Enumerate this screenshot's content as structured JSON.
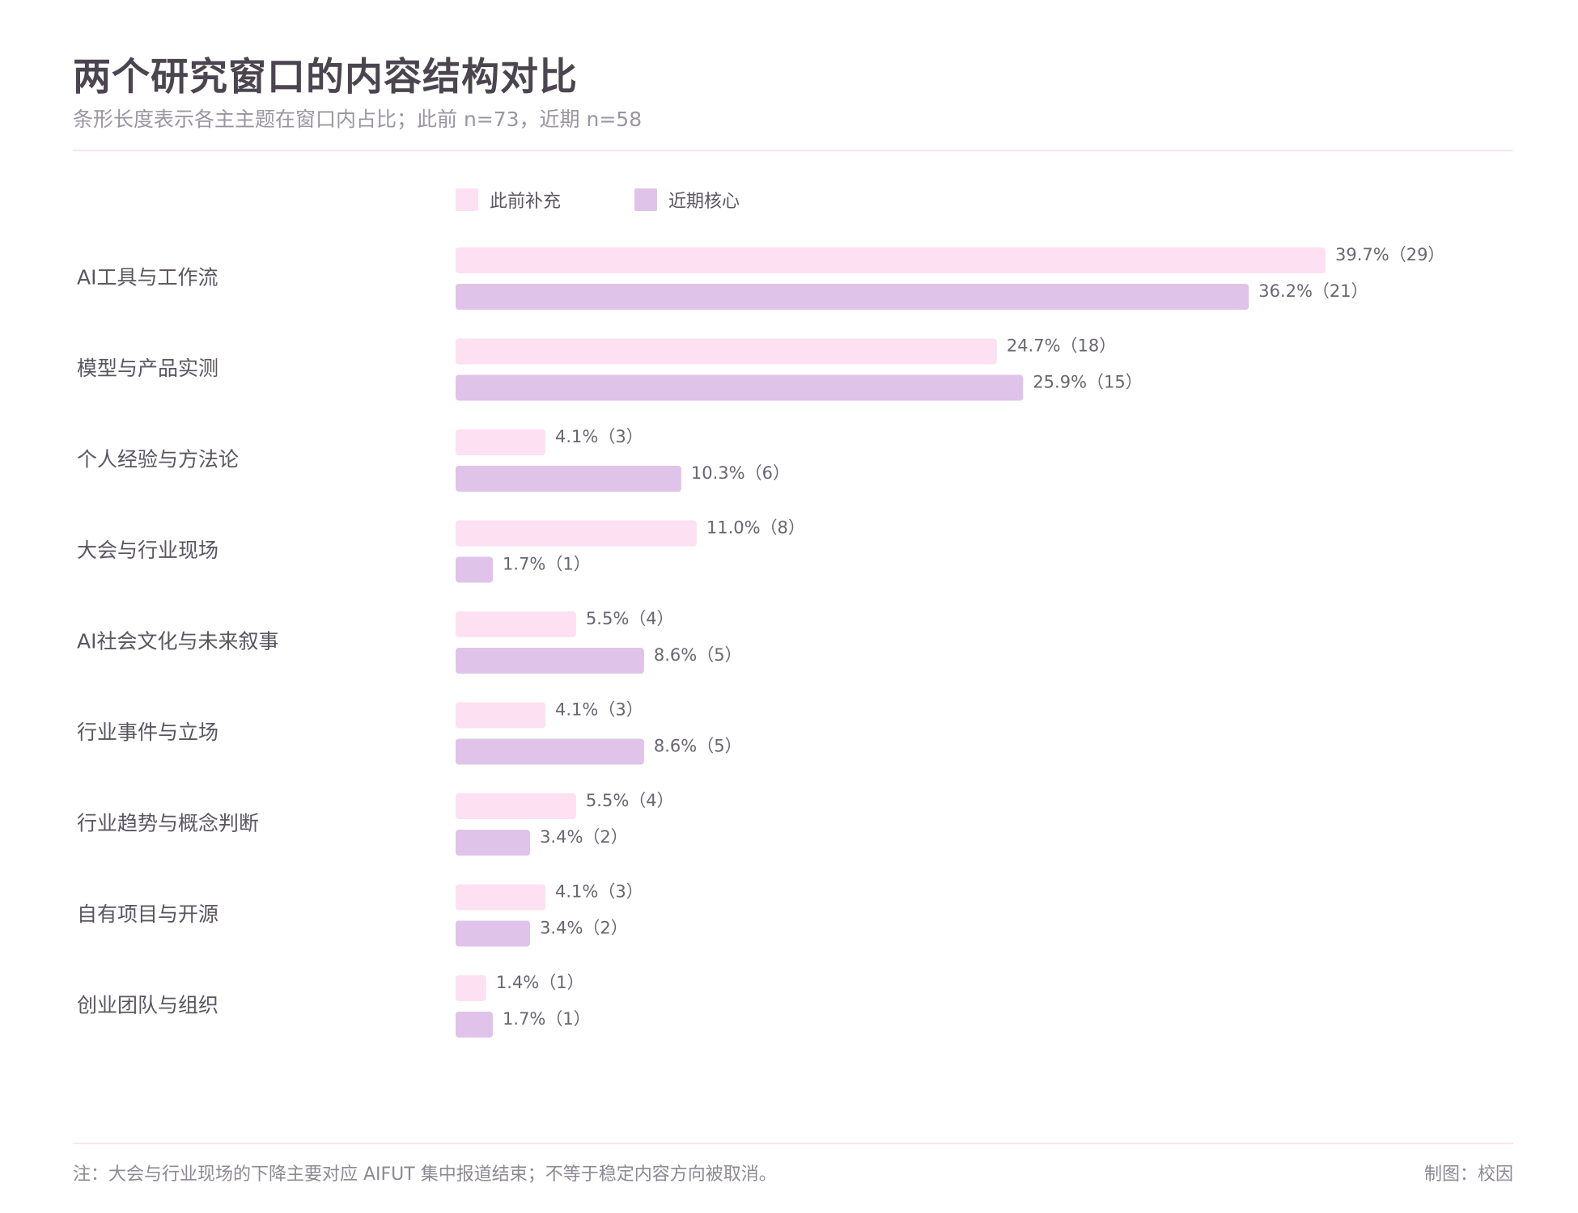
{
  "title": "两个研究窗口的内容结构对比",
  "subtitle": "条形长度表示各主主题在窗口内占比；此前 n=73，近期 n=58",
  "footer": {
    "note": "注：大会与行业现场的下降主要对应 AIFUT 集中报道结束；不等于稳定内容方向被取消。",
    "credit": "制图：校因"
  },
  "colors": {
    "previous": "#fde0f1",
    "recent": "#e0c3e8",
    "label": "#5a5560",
    "value_label": "#6a6570",
    "rule": "#fbe3ef"
  },
  "chart_data": {
    "type": "bar",
    "orientation": "horizontal",
    "categories": [
      "AI工具与工作流",
      "模型与产品实测",
      "个人经验与方法论",
      "大会与行业现场",
      "AI社会文化与未来叙事",
      "行业事件与立场",
      "行业趋势与概念判断",
      "自有项目与开源",
      "创业团队与组织"
    ],
    "series": [
      {
        "name": "此前补充",
        "color": "#fde0f1",
        "values": [
          39.7,
          24.7,
          4.1,
          11.0,
          5.5,
          4.1,
          5.5,
          4.1,
          1.4
        ],
        "labels": [
          "39.7%（29）",
          "24.7%（18）",
          "4.1%（3）",
          "11.0%（8）",
          "5.5%（4）",
          "4.1%（3）",
          "5.5%（4）",
          "4.1%（3）",
          "1.4%（1）"
        ]
      },
      {
        "name": "近期核心",
        "color": "#e0c3e8",
        "values": [
          36.2,
          25.9,
          10.3,
          1.7,
          8.6,
          8.6,
          3.4,
          3.4,
          1.7
        ],
        "labels": [
          "36.2%（21）",
          "25.9%（15）",
          "10.3%（6）",
          "1.7%（1）",
          "8.6%（5）",
          "8.6%（5）",
          "3.4%（2）",
          "3.4%（2）",
          "1.7%（1）"
        ]
      }
    ],
    "legend": "top",
    "grid": false,
    "xlim": [
      0,
      40
    ]
  }
}
